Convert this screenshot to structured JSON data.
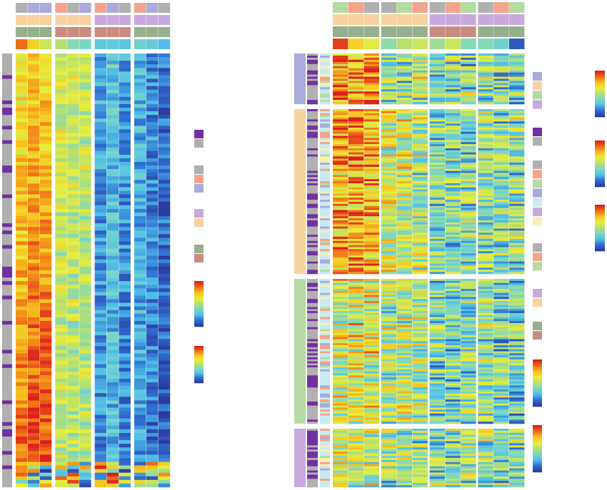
{
  "colors": {
    "purple": "#7030a0",
    "grey": "#b0b0b0",
    "salmon": "#f4a48c",
    "lavender": "#aaaadc",
    "lilac": "#c8aade",
    "peach": "#f8d2a0",
    "sage": "#96af8c",
    "rose": "#c88c80",
    "mint": "#b4dca0",
    "pale_cyan": "#c8ebf0",
    "pale_yellow": "#f8f0b4",
    "scale": [
      "#2b3a9e",
      "#2f6fd0",
      "#4fbfe8",
      "#7ad6c8",
      "#b6e070",
      "#e8ee3a",
      "#f8c020",
      "#f07018",
      "#dc1e1e"
    ]
  },
  "chart_data": [
    {
      "type": "heatmap",
      "name": "",
      "value_range": [
        0,
        1
      ],
      "column_groups": 4,
      "columns_per_group": 3,
      "rows": 120,
      "column_annotation_tracks": [
        [
          "grey",
          "lavender",
          "lavender",
          "salmon",
          "grey",
          "lavender",
          "salmon",
          "lavender",
          "grey",
          "salmon",
          "lavender",
          "grey"
        ],
        [
          "peach",
          "peach",
          "peach",
          "peach",
          "peach",
          "peach",
          "lilac",
          "lilac",
          "lilac",
          "lilac",
          "lilac",
          "lilac"
        ],
        [
          "sage",
          "sage",
          "sage",
          "rose",
          "rose",
          "rose",
          "rose",
          "rose",
          "rose",
          "sage",
          "sage",
          "sage"
        ],
        [
          0.88,
          0.7,
          0.55,
          0.5,
          0.4,
          0.38,
          0.3,
          0.3,
          0.28,
          0.35,
          0.32,
          0.25
        ]
      ],
      "row_groups": [],
      "column_profile": [
        0.72,
        0.8,
        0.78,
        0.58,
        0.55,
        0.55,
        0.22,
        0.3,
        0.2,
        0.25,
        0.18,
        0.12
      ],
      "row_gradient": 0.3,
      "noise": 0.12
    },
    {
      "type": "heatmap",
      "name": "",
      "value_range": [
        0,
        1
      ],
      "column_groups": 4,
      "columns_per_group": 3,
      "column_annotation_tracks": [
        [
          "mint",
          "salmon",
          "grey",
          "grey",
          "mint",
          "salmon",
          "grey",
          "salmon",
          "mint",
          "grey",
          "salmon",
          "mint"
        ],
        [
          "peach",
          "peach",
          "peach",
          "peach",
          "peach",
          "peach",
          "lilac",
          "lilac",
          "lilac",
          "lilac",
          "lilac",
          "lilac"
        ],
        [
          "sage",
          "sage",
          "sage",
          "sage",
          "sage",
          "sage",
          "rose",
          "rose",
          "rose",
          "sage",
          "sage",
          "sage"
        ],
        [
          0.95,
          0.7,
          0.6,
          0.42,
          0.5,
          0.55,
          0.45,
          0.55,
          0.4,
          0.4,
          0.35,
          0.08
        ]
      ],
      "row_groups": [
        {
          "color": "lavender",
          "rows": 24,
          "profile": [
            0.85,
            0.8,
            0.85,
            0.5,
            0.45,
            0.5,
            0.4,
            0.45,
            0.42,
            0.45,
            0.4,
            0.38
          ]
        },
        {
          "color": "peach",
          "rows": 80,
          "profile": [
            0.8,
            0.78,
            0.75,
            0.55,
            0.55,
            0.5,
            0.4,
            0.42,
            0.4,
            0.42,
            0.4,
            0.42
          ]
        },
        {
          "color": "mint",
          "rows": 72,
          "profile": [
            0.55,
            0.6,
            0.58,
            0.5,
            0.55,
            0.5,
            0.4,
            0.38,
            0.4,
            0.42,
            0.38,
            0.32
          ]
        },
        {
          "color": "lilac",
          "rows": 28,
          "profile": [
            0.62,
            0.55,
            0.5,
            0.45,
            0.42,
            0.45,
            0.4,
            0.42,
            0.4,
            0.45,
            0.42,
            0.4
          ]
        }
      ],
      "noise": 0.25
    }
  ],
  "legend_left": {
    "groups": [
      [
        "purple",
        "grey"
      ],
      [
        "grey",
        "salmon",
        "lavender"
      ],
      [
        "lilac",
        "peach"
      ],
      [
        "sage",
        "rose"
      ]
    ],
    "colorbars": 2
  },
  "legend_right": {
    "groups": [
      [
        "lavender",
        "peach",
        "mint",
        "lilac"
      ],
      [
        "purple",
        "grey"
      ],
      [
        "grey",
        "salmon",
        "mint",
        "lavender",
        "pale_cyan",
        "lilac",
        "pale_yellow"
      ],
      [
        "grey",
        "salmon",
        "mint"
      ],
      [
        "lilac",
        "peach"
      ],
      [
        "sage",
        "rose"
      ]
    ],
    "colorbars": 2,
    "far_colorbars": 3
  }
}
